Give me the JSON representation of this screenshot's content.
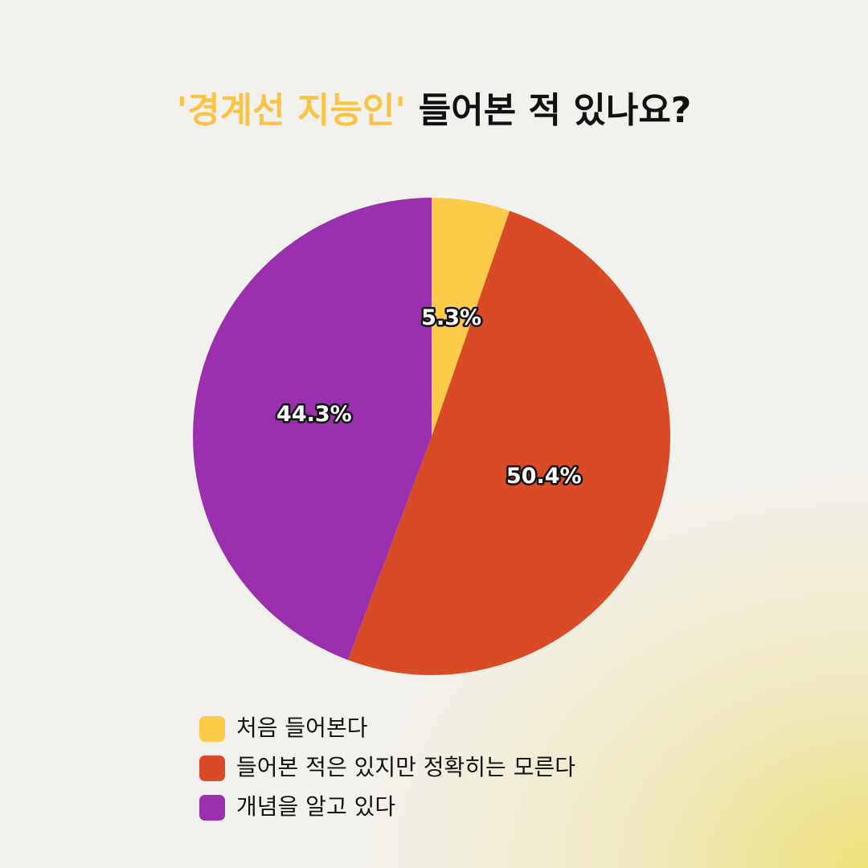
{
  "chart_data": {
    "type": "pie",
    "title": [
      "'경계선 지능인'",
      "들어본 적 있나요?"
    ],
    "categories": [
      "처음 들어본다",
      "들어본 적은 있지만 정확히는 모른다",
      "개념을 알고 있다"
    ],
    "values": [
      5.3,
      50.4,
      44.3
    ],
    "value_labels": [
      "5.3%",
      "50.4%",
      "44.3%"
    ],
    "colors": [
      "#fdcb4a",
      "#d94a27",
      "#9a30ae"
    ],
    "legend": "bottom"
  }
}
